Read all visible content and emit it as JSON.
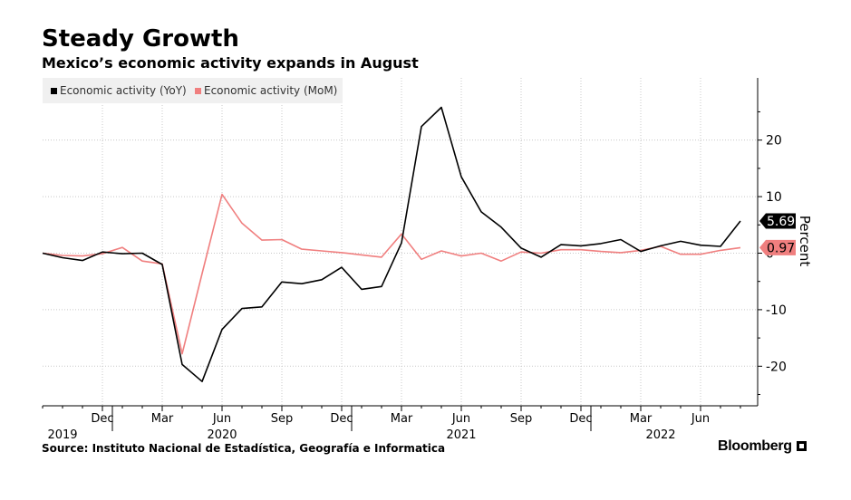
{
  "title": "Steady Growth",
  "subtitle": "Mexico’s economic activity expands in August",
  "source": "Source: Instituto Nacional de Estadística, Geografía e Informatica",
  "brand": "Bloomberg",
  "chart_data": {
    "type": "line",
    "title": "Steady Growth",
    "subtitle": "Mexico’s economic activity expands in August",
    "xlabel": "",
    "ylabel": "Percent",
    "ylim": [
      -27,
      31
    ],
    "yticks": [
      -20,
      -10,
      0,
      10,
      20
    ],
    "ytick_labels": [
      "-20",
      "-10",
      "0",
      "10",
      "20"
    ],
    "y_axis_side": "right",
    "grid": true,
    "legend_position": "top-left",
    "x_tick_labels": [
      "Dec",
      "Mar",
      "Jun",
      "Sep",
      "Dec",
      "Mar",
      "Jun",
      "Sep",
      "Dec",
      "Mar",
      "Jun"
    ],
    "x_tick_dates": [
      "2019-12",
      "2020-03",
      "2020-06",
      "2020-09",
      "2020-12",
      "2021-03",
      "2021-06",
      "2021-09",
      "2021-12",
      "2022-03",
      "2022-06"
    ],
    "year_labels": [
      {
        "label": "2019",
        "date": "2019-10"
      },
      {
        "label": "2020",
        "date": "2020-06"
      },
      {
        "label": "2021",
        "date": "2021-06"
      },
      {
        "label": "2022",
        "date": "2022-04"
      }
    ],
    "x": [
      "2019-09",
      "2019-10",
      "2019-11",
      "2019-12",
      "2020-01",
      "2020-02",
      "2020-03",
      "2020-04",
      "2020-05",
      "2020-06",
      "2020-07",
      "2020-08",
      "2020-09",
      "2020-10",
      "2020-11",
      "2020-12",
      "2021-01",
      "2021-02",
      "2021-03",
      "2021-04",
      "2021-05",
      "2021-06",
      "2021-07",
      "2021-08",
      "2021-09",
      "2021-10",
      "2021-11",
      "2021-12",
      "2022-01",
      "2022-02",
      "2022-03",
      "2022-04",
      "2022-05",
      "2022-06",
      "2022-07",
      "2022-08"
    ],
    "series": [
      {
        "name": "Economic activity (YoY)",
        "color": "#000000",
        "values": [
          0.0,
          -0.8,
          -1.3,
          0.2,
          -0.1,
          0.0,
          -2.0,
          -19.7,
          -22.7,
          -13.5,
          -9.8,
          -9.5,
          -5.1,
          -5.4,
          -4.7,
          -2.5,
          -6.4,
          -5.9,
          1.8,
          22.4,
          25.8,
          13.5,
          7.3,
          4.6,
          0.9,
          -0.7,
          1.5,
          1.3,
          1.7,
          2.4,
          0.3,
          1.3,
          2.1,
          1.4,
          1.2,
          5.69
        ],
        "end_label": "5.69"
      },
      {
        "name": "Economic activity (MoM)",
        "color": "#f07f7f",
        "values": [
          0.0,
          -0.4,
          -0.5,
          -0.1,
          1.0,
          -1.4,
          -1.9,
          -17.8,
          -3.6,
          10.4,
          5.3,
          2.3,
          2.4,
          0.7,
          0.4,
          0.1,
          -0.3,
          -0.7,
          3.4,
          -1.1,
          0.4,
          -0.5,
          0.0,
          -1.4,
          0.2,
          0.0,
          0.6,
          0.6,
          0.3,
          0.1,
          0.5,
          1.2,
          -0.2,
          -0.2,
          0.5,
          0.97
        ],
        "end_label": "0.97"
      }
    ]
  }
}
